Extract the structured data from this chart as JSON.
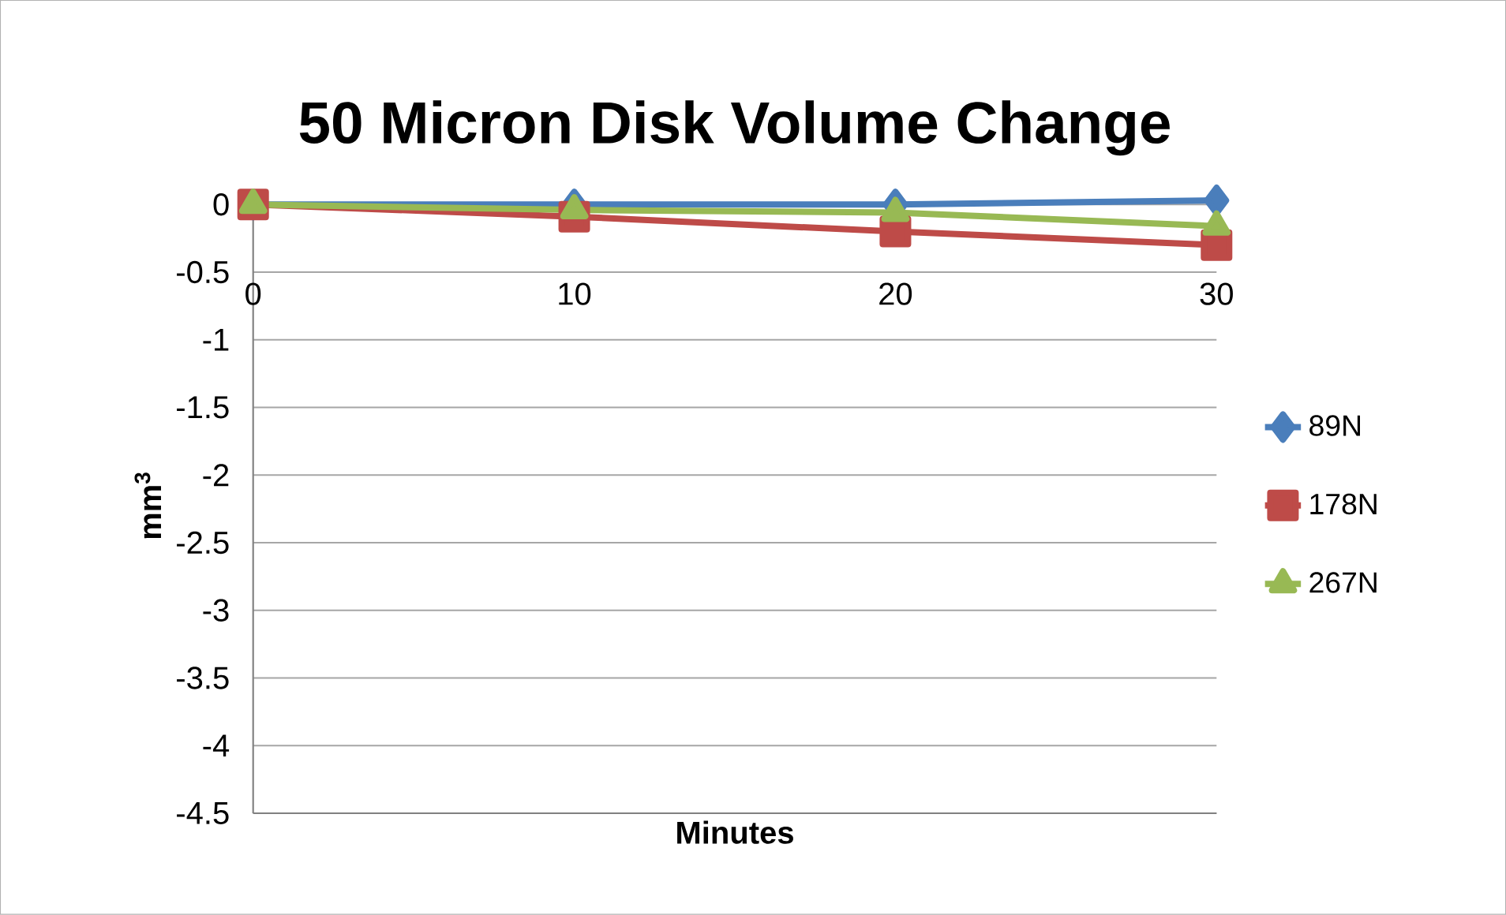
{
  "chart_data": {
    "type": "line",
    "title": "50 Micron Disk Volume Change",
    "xlabel": "Minutes",
    "ylabel": "mm$^{3}$",
    "x": [
      0,
      10,
      20,
      30
    ],
    "xlim": [
      0,
      30
    ],
    "xticks": [
      0,
      10,
      20,
      30
    ],
    "ylim": [
      -4.5,
      0.05
    ],
    "yticks": [
      -4.5,
      -4,
      -3.5,
      -3,
      -2.5,
      -2,
      -1.5,
      -1,
      -0.5,
      0
    ],
    "grid": "y",
    "legend": "right",
    "series": [
      {
        "name": "89N",
        "color": "#4a7ebb",
        "marker": "diamond",
        "values": [
          0,
          0,
          0,
          0.03
        ]
      },
      {
        "name": "178N",
        "color": "#be4b48",
        "marker": "square",
        "values": [
          0,
          -0.09,
          -0.2,
          -0.3
        ]
      },
      {
        "name": "267N",
        "color": "#98b954",
        "marker": "triangle",
        "values": [
          0,
          -0.04,
          -0.06,
          -0.16
        ]
      }
    ]
  }
}
